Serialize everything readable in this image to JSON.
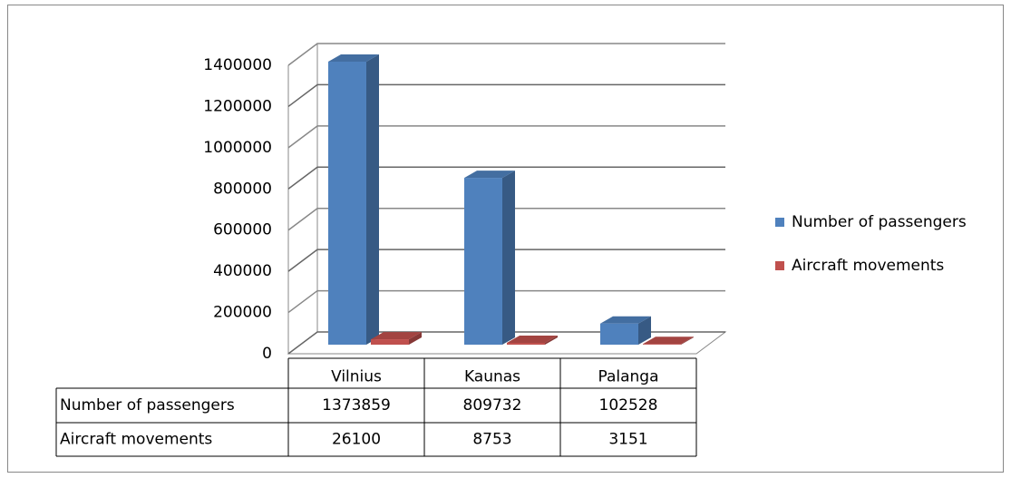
{
  "chart_data": {
    "type": "bar3d",
    "categories": [
      "Vilnius",
      "Kaunas",
      "Palanga"
    ],
    "series": [
      {
        "name": "Number of passengers",
        "color": "#4f81bd",
        "values": [
          1373859,
          809732,
          102528
        ]
      },
      {
        "name": "Aircraft movements",
        "color": "#c0504d",
        "values": [
          26100,
          8753,
          3151
        ]
      }
    ],
    "ylim": [
      0,
      1400000
    ],
    "yticks": [
      0,
      200000,
      400000,
      600000,
      800000,
      1000000,
      1200000,
      1400000
    ],
    "grid": true,
    "legend": "right",
    "data_table": true
  }
}
